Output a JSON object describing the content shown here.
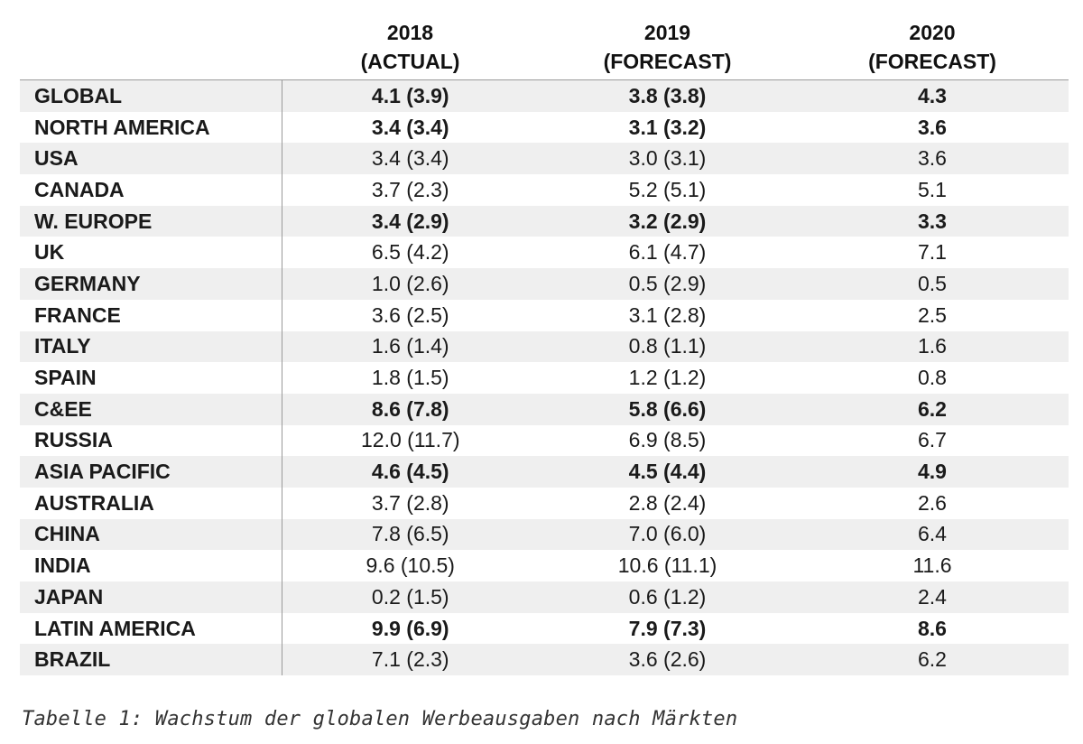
{
  "table": {
    "columns": [
      {
        "year": "2018",
        "label": "(ACTUAL)"
      },
      {
        "year": "2019",
        "label": "(FORECAST)"
      },
      {
        "year": "2020",
        "label": "(FORECAST)"
      }
    ],
    "rows": [
      {
        "region": "GLOBAL",
        "v2018": "4.1 (3.9)",
        "v2019": "3.8 (3.8)",
        "v2020": "4.3",
        "bold": true
      },
      {
        "region": "NORTH AMERICA",
        "v2018": "3.4 (3.4)",
        "v2019": "3.1 (3.2)",
        "v2020": "3.6",
        "bold": true
      },
      {
        "region": "USA",
        "v2018": "3.4 (3.4)",
        "v2019": "3.0 (3.1)",
        "v2020": "3.6",
        "bold": false
      },
      {
        "region": "CANADA",
        "v2018": "3.7 (2.3)",
        "v2019": "5.2 (5.1)",
        "v2020": "5.1",
        "bold": false
      },
      {
        "region": "W. EUROPE",
        "v2018": "3.4 (2.9)",
        "v2019": "3.2 (2.9)",
        "v2020": "3.3",
        "bold": true
      },
      {
        "region": "UK",
        "v2018": "6.5 (4.2)",
        "v2019": "6.1 (4.7)",
        "v2020": "7.1",
        "bold": false
      },
      {
        "region": "GERMANY",
        "v2018": "1.0 (2.6)",
        "v2019": "0.5 (2.9)",
        "v2020": "0.5",
        "bold": false
      },
      {
        "region": "FRANCE",
        "v2018": "3.6 (2.5)",
        "v2019": "3.1 (2.8)",
        "v2020": "2.5",
        "bold": false
      },
      {
        "region": "ITALY",
        "v2018": "1.6 (1.4)",
        "v2019": "0.8 (1.1)",
        "v2020": "1.6",
        "bold": false
      },
      {
        "region": "SPAIN",
        "v2018": "1.8 (1.5)",
        "v2019": "1.2 (1.2)",
        "v2020": "0.8",
        "bold": false
      },
      {
        "region": "C&EE",
        "v2018": "8.6 (7.8)",
        "v2019": "5.8 (6.6)",
        "v2020": "6.2",
        "bold": true
      },
      {
        "region": "RUSSIA",
        "v2018": "12.0 (11.7)",
        "v2019": "6.9 (8.5)",
        "v2020": "6.7",
        "bold": false
      },
      {
        "region": "ASIA PACIFIC",
        "v2018": "4.6 (4.5)",
        "v2019": "4.5 (4.4)",
        "v2020": "4.9",
        "bold": true
      },
      {
        "region": "AUSTRALIA",
        "v2018": "3.7 (2.8)",
        "v2019": "2.8 (2.4)",
        "v2020": "2.6",
        "bold": false
      },
      {
        "region": "CHINA",
        "v2018": "7.8 (6.5)",
        "v2019": "7.0 (6.0)",
        "v2020": "6.4",
        "bold": false
      },
      {
        "region": "INDIA",
        "v2018": "9.6 (10.5)",
        "v2019": "10.6 (11.1)",
        "v2020": "11.6",
        "bold": false
      },
      {
        "region": "JAPAN",
        "v2018": "0.2 (1.5)",
        "v2019": "0.6 (1.2)",
        "v2020": "2.4",
        "bold": false
      },
      {
        "region": "LATIN AMERICA",
        "v2018": "9.9 (6.9)",
        "v2019": "7.9 (7.3)",
        "v2020": "8.6",
        "bold": true
      },
      {
        "region": "BRAZIL",
        "v2018": "7.1 (2.3)",
        "v2019": "3.6 (2.6)",
        "v2020": "6.2",
        "bold": false
      }
    ]
  },
  "caption": "Tabelle 1: Wachstum der globalen Werbeausgaben nach Märkten",
  "colors": {
    "stripe": "#efefef",
    "rule": "#9a9a9a",
    "text": "#1a1a1a"
  }
}
